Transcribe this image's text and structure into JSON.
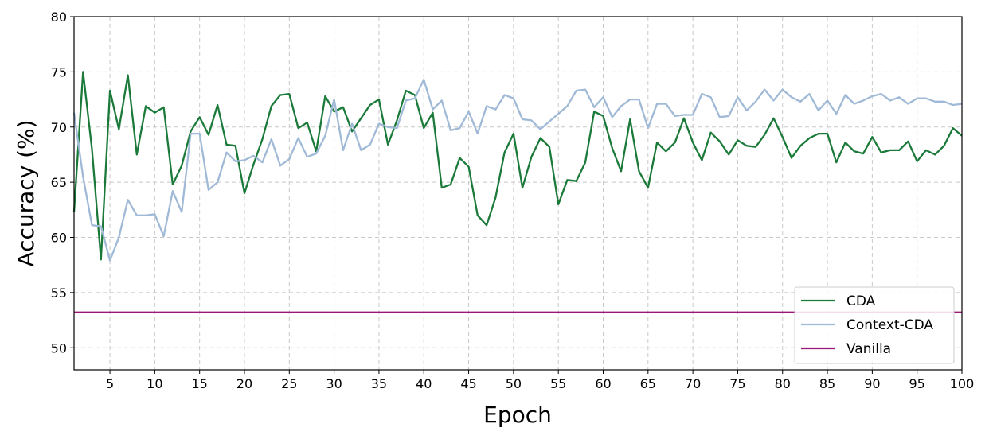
{
  "chart_data": {
    "type": "line",
    "xlabel": "Epoch",
    "ylabel": "Accuracy (%)",
    "xlim": [
      1,
      100
    ],
    "ylim": [
      48,
      80
    ],
    "xticks": [
      5,
      10,
      15,
      20,
      25,
      30,
      35,
      40,
      45,
      50,
      55,
      60,
      65,
      70,
      75,
      80,
      85,
      90,
      95,
      100
    ],
    "yticks": [
      50,
      55,
      60,
      65,
      70,
      75,
      80
    ],
    "grid": true,
    "legend_position": "bottom-right",
    "series": [
      {
        "name": "CDA",
        "color": "#1b7a3a",
        "x": [
          1,
          2,
          3,
          4,
          5,
          6,
          7,
          8,
          9,
          10,
          11,
          12,
          13,
          14,
          15,
          16,
          17,
          18,
          19,
          20,
          21,
          22,
          23,
          24,
          25,
          26,
          27,
          28,
          29,
          30,
          31,
          32,
          33,
          34,
          35,
          36,
          37,
          38,
          39,
          40,
          41,
          42,
          43,
          44,
          45,
          46,
          47,
          48,
          49,
          50,
          51,
          52,
          53,
          54,
          55,
          56,
          57,
          58,
          59,
          60,
          61,
          62,
          63,
          64,
          65,
          66,
          67,
          68,
          69,
          70,
          71,
          72,
          73,
          74,
          75,
          76,
          77,
          78,
          79,
          80,
          81,
          82,
          83,
          84,
          85,
          86,
          87,
          88,
          89,
          90,
          91,
          92,
          93,
          94,
          95,
          96,
          97,
          98,
          99,
          100
        ],
        "values": [
          62.3,
          75.0,
          68.0,
          58.0,
          73.3,
          69.8,
          74.7,
          67.5,
          71.9,
          71.3,
          71.8,
          64.8,
          66.5,
          69.6,
          70.9,
          69.3,
          72.0,
          68.4,
          68.3,
          64.0,
          66.6,
          68.9,
          71.9,
          72.9,
          73.0,
          69.9,
          70.4,
          67.8,
          72.8,
          71.4,
          71.8,
          69.6,
          70.8,
          72.0,
          72.5,
          68.4,
          70.6,
          73.3,
          72.9,
          69.9,
          71.3,
          64.5,
          64.8,
          67.2,
          66.4,
          62.0,
          61.1,
          63.6,
          67.7,
          69.4,
          64.5,
          67.3,
          69.0,
          68.2,
          63.0,
          65.2,
          65.1,
          66.8,
          71.4,
          71.0,
          68.1,
          66.0,
          70.7,
          66.0,
          64.5,
          68.6,
          67.8,
          68.6,
          70.8,
          68.6,
          67.0,
          69.5,
          68.7,
          67.5,
          68.8,
          68.3,
          68.2,
          69.3,
          70.8,
          69.1,
          67.2,
          68.3,
          69.0,
          69.4,
          69.4,
          66.8,
          68.6,
          67.8,
          67.6,
          69.1,
          67.7,
          67.9,
          67.9,
          68.7,
          66.9,
          67.9,
          67.5,
          68.3,
          69.9,
          69.2
        ]
      },
      {
        "name": "Context-CDA",
        "color": "#9fb9d6",
        "x": [
          1,
          2,
          3,
          4,
          5,
          6,
          7,
          8,
          9,
          10,
          11,
          12,
          13,
          14,
          15,
          16,
          17,
          18,
          19,
          20,
          21,
          22,
          23,
          24,
          25,
          26,
          27,
          28,
          29,
          30,
          31,
          32,
          33,
          34,
          35,
          36,
          37,
          38,
          39,
          40,
          41,
          42,
          43,
          44,
          45,
          46,
          47,
          48,
          49,
          50,
          51,
          52,
          53,
          54,
          55,
          56,
          57,
          58,
          59,
          60,
          61,
          62,
          63,
          64,
          65,
          66,
          67,
          68,
          69,
          70,
          71,
          72,
          73,
          74,
          75,
          76,
          77,
          78,
          79,
          80,
          81,
          82,
          83,
          84,
          85,
          86,
          87,
          88,
          89,
          90,
          91,
          92,
          93,
          94,
          95,
          96,
          97,
          98,
          99,
          100
        ],
        "values": [
          71.3,
          65.5,
          61.1,
          61.0,
          57.9,
          60.0,
          63.4,
          62.0,
          62.0,
          62.1,
          60.1,
          64.2,
          62.3,
          69.4,
          69.4,
          64.3,
          65.0,
          67.7,
          66.9,
          67.0,
          67.4,
          66.8,
          68.9,
          66.5,
          67.1,
          69.0,
          67.3,
          67.6,
          69.2,
          72.5,
          67.9,
          70.3,
          67.9,
          68.4,
          70.3,
          70.0,
          69.9,
          72.4,
          72.6,
          74.3,
          71.6,
          72.4,
          69.7,
          69.9,
          71.4,
          69.4,
          71.9,
          71.6,
          72.9,
          72.6,
          70.7,
          70.6,
          69.8,
          70.5,
          71.2,
          71.9,
          73.3,
          73.4,
          71.8,
          72.7,
          70.9,
          71.9,
          72.5,
          72.5,
          69.9,
          72.1,
          72.1,
          71.0,
          71.1,
          71.1,
          73.0,
          72.7,
          70.9,
          71.0,
          72.7,
          71.5,
          72.3,
          73.4,
          72.4,
          73.4,
          72.7,
          72.3,
          73.0,
          71.5,
          72.4,
          71.2,
          72.9,
          72.1,
          72.4,
          72.8,
          73.0,
          72.4,
          72.7,
          72.1,
          72.6,
          72.6,
          72.3,
          72.3,
          72.0,
          72.1
        ]
      },
      {
        "name": "Vanilla",
        "color": "#9b1677",
        "x": [
          1,
          100
        ],
        "values": [
          53.2,
          53.2
        ]
      }
    ]
  }
}
